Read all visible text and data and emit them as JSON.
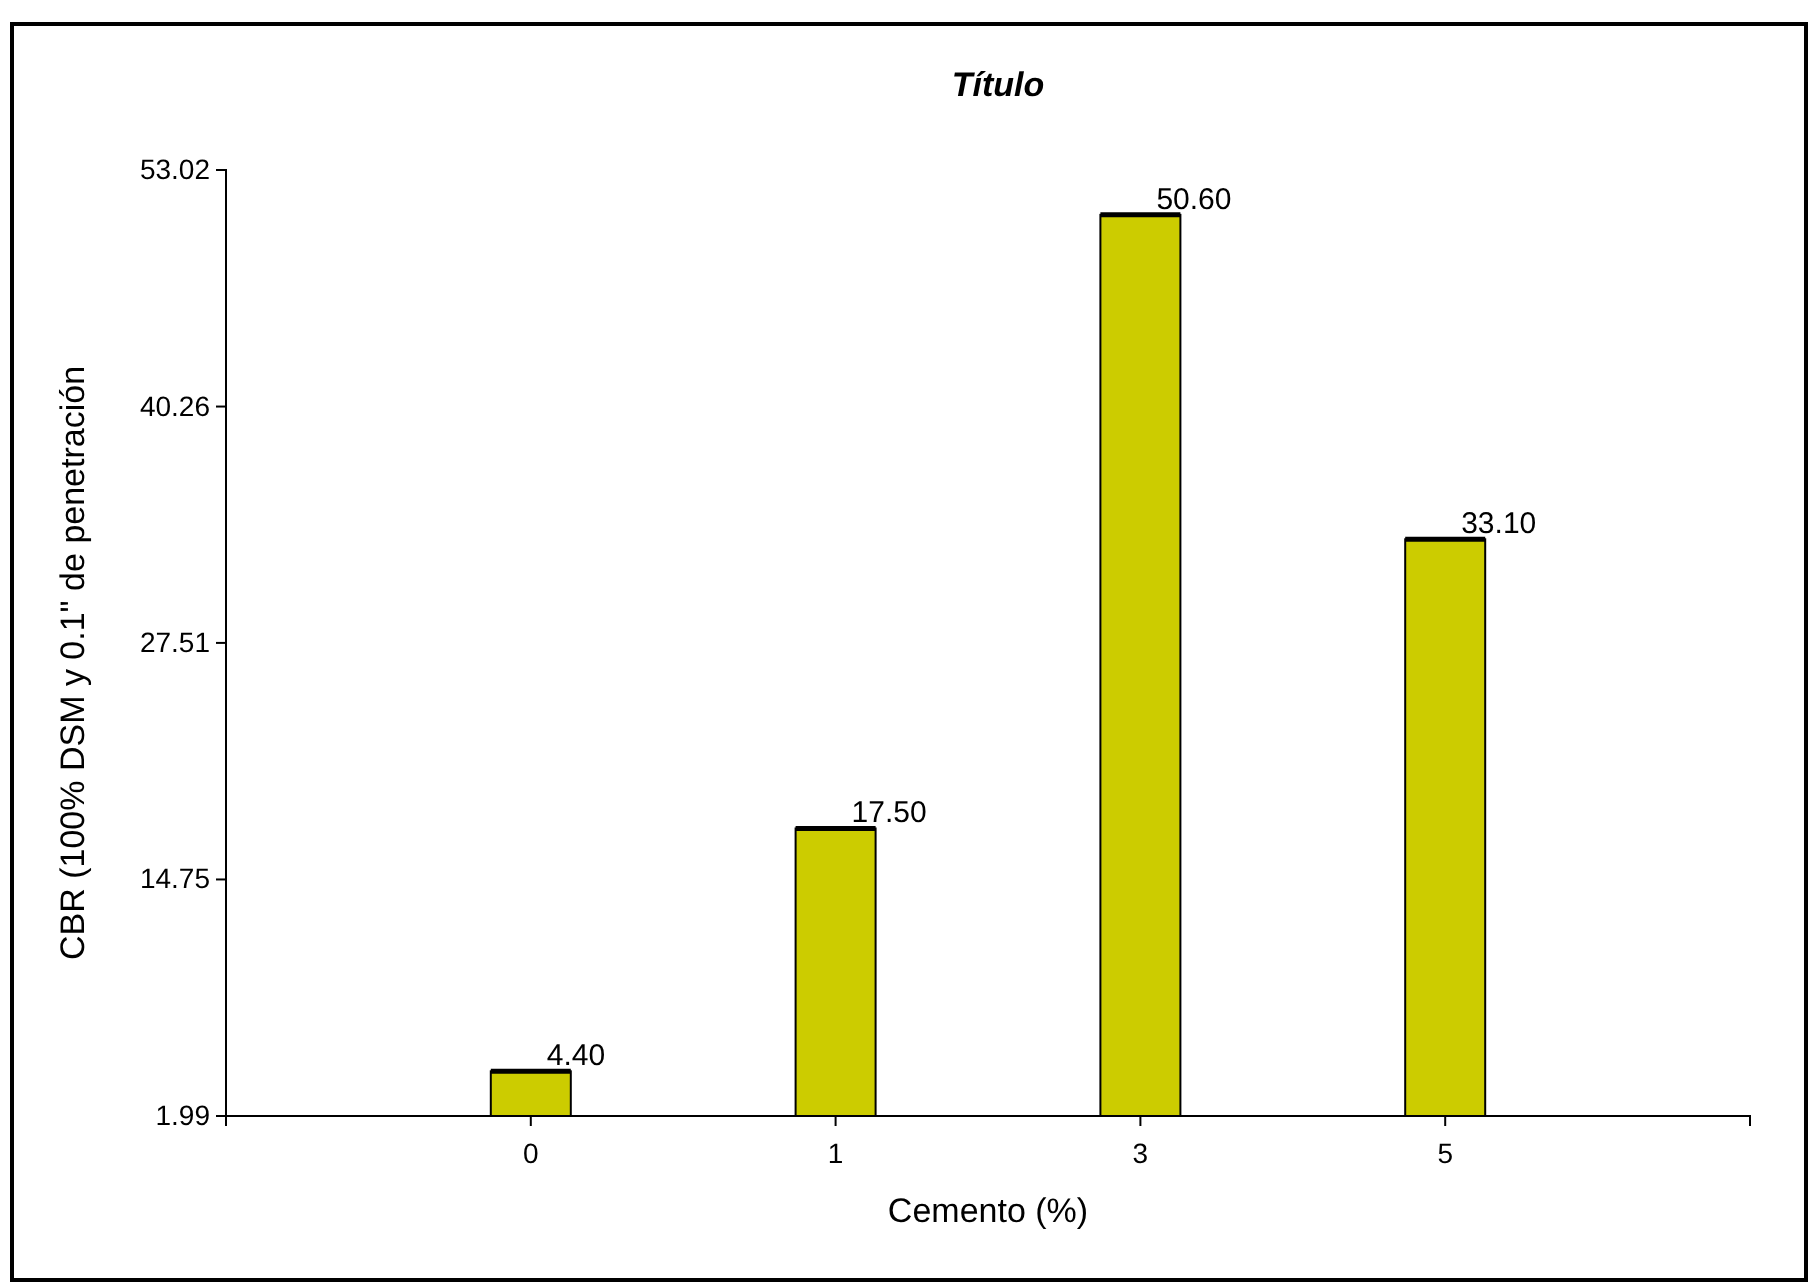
{
  "chart_data": {
    "type": "bar",
    "title": "Título",
    "xlabel": "Cemento (%)",
    "ylabel": "CBR (100% DSM y 0.1\" de penetración",
    "categories": [
      "0",
      "1",
      "3",
      "5"
    ],
    "values": [
      4.4,
      17.5,
      50.6,
      33.1
    ],
    "value_labels": [
      "4.40",
      "17.50",
      "50.60",
      "33.10"
    ],
    "color": "#cccc00",
    "ylim": [
      1.99,
      53.02
    ],
    "yticks": [
      1.99,
      14.75,
      27.51,
      40.26,
      53.02
    ],
    "grid": false
  }
}
